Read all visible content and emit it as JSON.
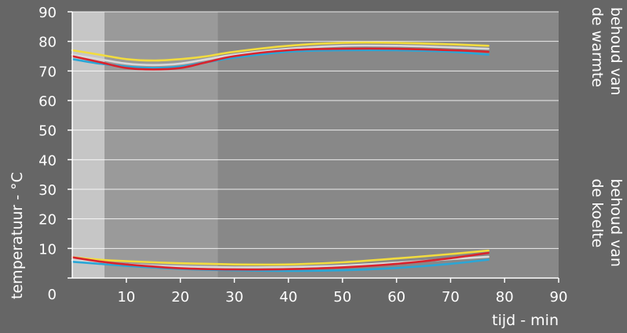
{
  "chart_data": {
    "type": "line",
    "ylabel": "temperatuur  - °C",
    "xlabel": "tijd - min",
    "xlim": [
      0,
      90
    ],
    "ylim": [
      0,
      90
    ],
    "x_ticks": [
      "0",
      "10",
      "20",
      "30",
      "40",
      "50",
      "60",
      "70",
      "80",
      "90"
    ],
    "y_ticks": [
      "0",
      "10",
      "20",
      "30",
      "40",
      "50",
      "60",
      "70",
      "80",
      "90"
    ],
    "grid": true,
    "background_bands": [
      {
        "from": 0,
        "to": 6,
        "color": "#c6c6c6"
      },
      {
        "from": 6,
        "to": 27,
        "color": "#9a9a9a"
      },
      {
        "from": 27,
        "to": 90,
        "color": "#888888"
      }
    ],
    "annotations": [
      {
        "lines": [
          "behoud van",
          "de warmte"
        ],
        "y_anchor": 90
      },
      {
        "lines": [
          "behoud van",
          "de koelte"
        ],
        "y_anchor": 32
      }
    ],
    "series": [
      {
        "group": "warm",
        "color": "#f2dc3e",
        "x": [
          0,
          5,
          10,
          15,
          20,
          25,
          30,
          40,
          50,
          60,
          70,
          77
        ],
        "y": [
          77,
          75.5,
          74,
          73.5,
          74,
          75,
          76.5,
          78.5,
          79.5,
          79.5,
          79,
          78.5
        ]
      },
      {
        "group": "warm",
        "color": "#d9d9d9",
        "x": [
          0,
          5,
          10,
          15,
          20,
          25,
          30,
          40,
          50,
          60,
          70,
          77
        ],
        "y": [
          75.5,
          74,
          72.5,
          72,
          72.5,
          74,
          75.5,
          77.5,
          78.5,
          78.5,
          78,
          77.5
        ]
      },
      {
        "group": "warm",
        "color": "#2aa6d6",
        "x": [
          0,
          5,
          10,
          15,
          20,
          25,
          30,
          40,
          50,
          60,
          70,
          77
        ],
        "y": [
          74,
          72.5,
          71.5,
          71,
          71.5,
          73,
          74.5,
          76.5,
          77,
          77,
          76.5,
          75.5
        ]
      },
      {
        "group": "warm",
        "color": "#d9232d",
        "x": [
          0,
          5,
          10,
          15,
          20,
          25,
          30,
          40,
          50,
          60,
          70,
          77
        ],
        "y": [
          75,
          73,
          71,
          70.5,
          71,
          73,
          75,
          77,
          77.5,
          77.5,
          77,
          76.5
        ]
      },
      {
        "group": "cool",
        "color": "#f2dc3e",
        "x": [
          0,
          5,
          10,
          20,
          30,
          40,
          50,
          60,
          70,
          77
        ],
        "y": [
          7,
          6.2,
          5.7,
          5.0,
          4.6,
          4.6,
          5.3,
          6.6,
          8.1,
          9.3
        ]
      },
      {
        "group": "cool",
        "color": "#d9d9d9",
        "x": [
          0,
          5,
          10,
          20,
          30,
          40,
          50,
          60,
          70,
          77
        ],
        "y": [
          6,
          5.3,
          4.6,
          3.9,
          3.6,
          3.7,
          4.2,
          5.2,
          6.4,
          7.2
        ]
      },
      {
        "group": "cool",
        "color": "#2aa6d6",
        "x": [
          0,
          5,
          10,
          20,
          30,
          40,
          50,
          60,
          70,
          77
        ],
        "y": [
          5.5,
          4.8,
          4.1,
          3.1,
          2.6,
          2.4,
          2.6,
          3.4,
          4.8,
          6.2
        ]
      },
      {
        "group": "cool",
        "color": "#d9232d",
        "x": [
          0,
          5,
          10,
          20,
          30,
          40,
          50,
          60,
          70,
          77
        ],
        "y": [
          7,
          5.6,
          4.6,
          3.3,
          2.9,
          3.0,
          3.6,
          4.8,
          6.7,
          8.5
        ]
      }
    ]
  }
}
